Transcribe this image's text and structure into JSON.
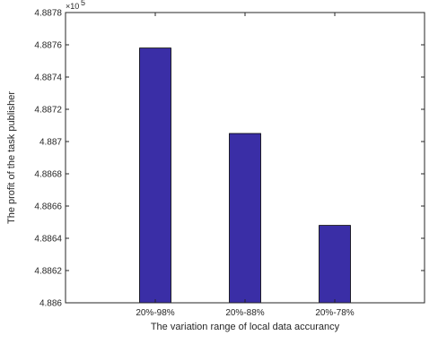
{
  "chart_data": {
    "type": "bar",
    "title": "",
    "xlabel": "The variation range of local data accurancy",
    "ylabel": "The profit of the task publisher",
    "y_exponent_label": "×10",
    "y_exponent_power": "5",
    "categories": [
      "20%-98%",
      "20%-88%",
      "20%-78%"
    ],
    "values": [
      488758,
      488705,
      488648
    ],
    "ylim": [
      488600,
      488780
    ],
    "yticks": [
      488600,
      488620,
      488640,
      488660,
      488680,
      488700,
      488720,
      488740,
      488760,
      488780
    ],
    "ytick_labels": [
      "4.886",
      "4.8862",
      "4.8864",
      "4.8866",
      "4.8868",
      "4.887",
      "4.8872",
      "4.8874",
      "4.8876",
      "4.8878"
    ],
    "bar_color": "#3a2ea6",
    "grid": false,
    "legend": "none"
  }
}
